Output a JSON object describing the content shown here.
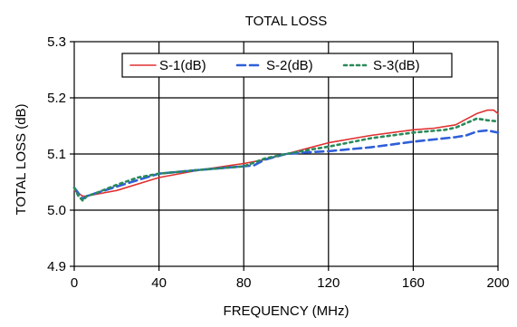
{
  "chart_data": {
    "type": "line",
    "title": "TOTAL LOSS",
    "xlabel": "FREQUENCY (MHz)",
    "ylabel": "TOTAL LOSS (dB)",
    "xlim": [
      0,
      200
    ],
    "ylim": [
      4.9,
      5.3
    ],
    "xticks": [
      "0",
      "40",
      "80",
      "120",
      "160",
      "200"
    ],
    "yticks": [
      "4.9",
      "5.0",
      "5.1",
      "5.2",
      "5.3"
    ],
    "grid": true,
    "legend_position": "top",
    "series": [
      {
        "name": "S-1(dB)",
        "color": "#e03030",
        "dash": "solid",
        "x": [
          0,
          2,
          4,
          6,
          10,
          20,
          40,
          60,
          80,
          90,
          100,
          110,
          120,
          140,
          160,
          170,
          180,
          185,
          190,
          195,
          198,
          200
        ],
        "y": [
          5.035,
          5.03,
          5.025,
          5.025,
          5.028,
          5.035,
          5.058,
          5.072,
          5.083,
          5.09,
          5.1,
          5.11,
          5.12,
          5.133,
          5.143,
          5.146,
          5.152,
          5.162,
          5.172,
          5.178,
          5.178,
          5.172
        ]
      },
      {
        "name": "S-2(dB)",
        "color": "#2f5fd8",
        "dash": "dashed",
        "x": [
          0,
          2,
          4,
          6,
          10,
          20,
          40,
          60,
          80,
          85,
          90,
          100,
          110,
          120,
          140,
          160,
          180,
          185,
          190,
          195,
          200
        ],
        "y": [
          5.04,
          5.03,
          5.02,
          5.025,
          5.03,
          5.042,
          5.065,
          5.072,
          5.078,
          5.08,
          5.09,
          5.1,
          5.103,
          5.105,
          5.112,
          5.122,
          5.13,
          5.133,
          5.14,
          5.142,
          5.138
        ]
      },
      {
        "name": "S-3(dB)",
        "color": "#2a8a5a",
        "dash": "dotted",
        "x": [
          0,
          2,
          4,
          6,
          10,
          20,
          30,
          40,
          60,
          80,
          85,
          90,
          100,
          110,
          120,
          140,
          160,
          175,
          180,
          185,
          190,
          195,
          200
        ],
        "y": [
          5.04,
          5.025,
          5.017,
          5.025,
          5.03,
          5.045,
          5.058,
          5.065,
          5.072,
          5.078,
          5.085,
          5.092,
          5.1,
          5.107,
          5.113,
          5.128,
          5.138,
          5.143,
          5.147,
          5.155,
          5.163,
          5.16,
          5.158
        ]
      }
    ]
  }
}
